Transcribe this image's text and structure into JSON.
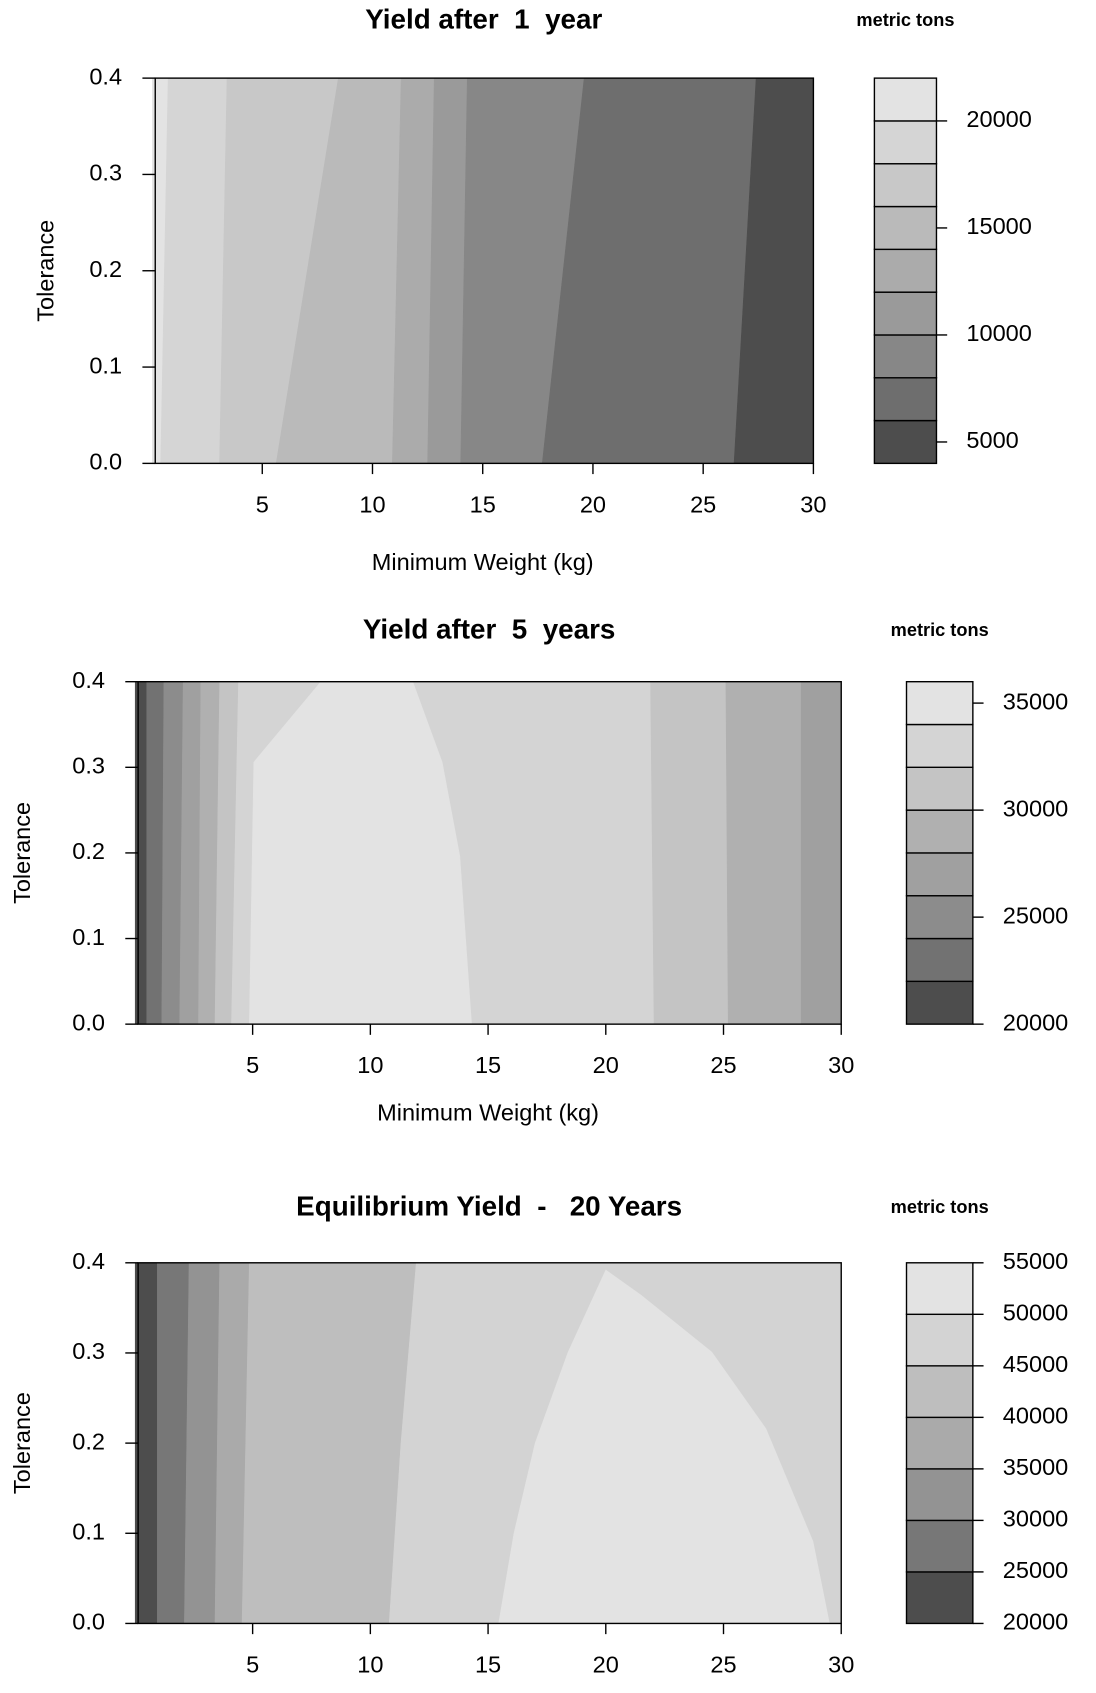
{
  "chart_data": [
    {
      "type": "contour",
      "title": "Yield after  1  year",
      "legend_title": "metric tons",
      "xlabel": "Minimum Weight (kg)",
      "ylabel": "Tolerance",
      "xlim": [
        0,
        30
      ],
      "ylim": [
        0,
        0.4
      ],
      "xticks": [
        5,
        10,
        15,
        20,
        25,
        30
      ],
      "yticks": [
        {
          "value": 0,
          "label": "0.0"
        },
        0.1,
        0.2,
        0.3,
        0.4
      ],
      "levels": [
        4000,
        6000,
        8000,
        10000,
        12000,
        14000,
        16000,
        18000,
        20000,
        22000
      ],
      "colors": [
        "#4d4d4d",
        "#6e6e6e",
        "#878787",
        "#9a9a9a",
        "#ababab",
        "#bababa",
        "#c8c8c8",
        "#d5d5d5",
        "#e3e3e3"
      ],
      "colorbar_ticks": [
        5000,
        10000,
        15000,
        20000
      ],
      "regions": [
        {
          "level": 20000,
          "x": [
            0,
            0.73,
            0.39,
            0
          ],
          "y": [
            0.4,
            0.4,
            0,
            0
          ]
        },
        {
          "level": 18000,
          "x": [
            0.73,
            3.4,
            3.06,
            0.39
          ],
          "y": [
            0.4,
            0.4,
            0,
            0
          ]
        },
        {
          "level": 16000,
          "x": [
            3.4,
            8.45,
            5.63,
            3.06
          ],
          "y": [
            0.4,
            0.4,
            0,
            0
          ]
        },
        {
          "level": 14000,
          "x": [
            8.45,
            11.3,
            10.9,
            5.63
          ],
          "y": [
            0.4,
            0.4,
            0,
            0
          ]
        },
        {
          "level": 12000,
          "x": [
            11.3,
            12.8,
            12.5,
            10.9
          ],
          "y": [
            0.4,
            0.4,
            0,
            0
          ]
        },
        {
          "level": 10000,
          "x": [
            12.8,
            14.3,
            14.0,
            12.5
          ],
          "y": [
            0.4,
            0.4,
            0,
            0
          ]
        },
        {
          "level": 8000,
          "x": [
            14.3,
            19.6,
            17.7,
            14.0
          ],
          "y": [
            0.4,
            0.4,
            0,
            0
          ]
        },
        {
          "level": 6000,
          "x": [
            19.6,
            27.4,
            26.4,
            17.7
          ],
          "y": [
            0.4,
            0.4,
            0,
            0
          ]
        },
        {
          "level": 4000,
          "x": [
            27.4,
            30,
            30,
            26.4
          ],
          "y": [
            0.4,
            0.4,
            0,
            0
          ]
        }
      ]
    },
    {
      "type": "contour",
      "title": "Yield after  5  years",
      "legend_title": "metric tons",
      "xlabel": "Minimum Weight (kg)",
      "ylabel": "Tolerance",
      "xlim": [
        0,
        30
      ],
      "ylim": [
        0,
        0.4
      ],
      "xticks": [
        5,
        10,
        15,
        20,
        25,
        30
      ],
      "yticks": [
        {
          "value": 0,
          "label": "0.0"
        },
        0.1,
        0.2,
        0.3,
        0.4
      ],
      "levels": [
        20000,
        22000,
        24000,
        26000,
        28000,
        30000,
        32000,
        34000,
        36000
      ],
      "colors": [
        "#4d4d4d",
        "#727272",
        "#8c8c8c",
        "#a0a0a0",
        "#b0b0b0",
        "#c4c4c4",
        "#d4d4d4",
        "#e3e3e3"
      ],
      "colorbar_ticks": [
        20000,
        25000,
        30000,
        35000
      ],
      "regions": [
        {
          "level": 20000,
          "x": [
            0,
            0.5,
            0.5,
            0
          ],
          "y": [
            0.4,
            0.4,
            0,
            0
          ]
        },
        {
          "level": 22000,
          "x": [
            0.5,
            1.23,
            1.14,
            0.5
          ],
          "y": [
            0.4,
            0.4,
            0,
            0
          ]
        },
        {
          "level": 24000,
          "x": [
            1.23,
            2.05,
            1.9,
            1.14
          ],
          "y": [
            0.4,
            0.4,
            0,
            0
          ]
        },
        {
          "level": 26000,
          "x": [
            2.05,
            2.8,
            2.7,
            1.9
          ],
          "y": [
            0.4,
            0.4,
            0,
            0
          ]
        },
        {
          "level": 28000,
          "x": [
            2.8,
            3.6,
            3.4,
            2.7
          ],
          "y": [
            0.4,
            0.4,
            0,
            0
          ]
        },
        {
          "level": 30000,
          "x": [
            3.6,
            4.4,
            4.1,
            3.4
          ],
          "y": [
            0.4,
            0.4,
            0,
            0
          ]
        },
        {
          "level": 32000,
          "x": [
            4.4,
            21.9,
            22.05,
            4.1
          ],
          "y": [
            0.4,
            0.4,
            0,
            0
          ]
        },
        {
          "level": 34000,
          "x": [
            7.9,
            11.8,
            13.05,
            13.8,
            14.3,
            4.86,
            5.05
          ],
          "y": [
            0.4,
            0.4,
            0.306,
            0.196,
            0,
            0,
            0.306
          ]
        },
        {
          "level": 30000,
          "x": [
            21.9,
            25.1,
            25.2,
            22.05
          ],
          "y": [
            0.4,
            0.4,
            0,
            0
          ]
        },
        {
          "level": 28000,
          "x": [
            25.1,
            28.3,
            28.3,
            25.2
          ],
          "y": [
            0.4,
            0.4,
            0,
            0
          ]
        },
        {
          "level": 26000,
          "x": [
            28.3,
            30,
            30,
            28.3
          ],
          "y": [
            0.4,
            0.4,
            0,
            0
          ]
        }
      ]
    },
    {
      "type": "contour",
      "title": "Equilibrium Yield  -   20 Years",
      "legend_title": "metric tons",
      "ylabel": "Tolerance",
      "xlim": [
        0,
        30
      ],
      "ylim": [
        0,
        0.4
      ],
      "xticks": [
        5,
        10,
        15,
        20,
        25,
        30
      ],
      "yticks": [
        {
          "value": 0,
          "label": "0.0"
        },
        0.1,
        0.2,
        0.3,
        0.4
      ],
      "levels": [
        20000,
        25000,
        30000,
        35000,
        40000,
        45000,
        50000,
        55000
      ],
      "colors": [
        "#4d4d4d",
        "#777777",
        "#939393",
        "#aaaaaa",
        "#bebebe",
        "#d3d3d3",
        "#e3e3e3"
      ],
      "colorbar_ticks": [
        20000,
        25000,
        30000,
        35000,
        40000,
        45000,
        50000,
        55000
      ],
      "regions": [
        {
          "level": 20000,
          "x": [
            0,
            0.95,
            0.95,
            0
          ],
          "y": [
            0.4,
            0.4,
            0,
            0
          ]
        },
        {
          "level": 25000,
          "x": [
            0.95,
            2.3,
            2.1,
            0.95
          ],
          "y": [
            0.4,
            0.4,
            0,
            0
          ]
        },
        {
          "level": 30000,
          "x": [
            2.3,
            3.6,
            3.4,
            2.1
          ],
          "y": [
            0.4,
            0.4,
            0,
            0
          ]
        },
        {
          "level": 35000,
          "x": [
            3.6,
            4.86,
            4.55,
            3.4
          ],
          "y": [
            0.4,
            0.4,
            0,
            0
          ]
        },
        {
          "level": 40000,
          "x": [
            4.86,
            11.95,
            11.3,
            10.8,
            4.55
          ],
          "y": [
            0.4,
            0.4,
            0.2,
            0,
            0
          ]
        },
        {
          "level": 45000,
          "x": [
            11.95,
            30,
            30,
            10.8,
            11.3
          ],
          "y": [
            0.4,
            0.4,
            0,
            0,
            0.2
          ]
        },
        {
          "level": 50000,
          "x": [
            20,
            21.5,
            24.5,
            26.8,
            28.8,
            29.5,
            15.45,
            16.1,
            17,
            18.4
          ],
          "y": [
            0.392,
            0.364,
            0.301,
            0.216,
            0.091,
            0,
            0,
            0.1,
            0.2,
            0.301
          ]
        }
      ]
    }
  ]
}
